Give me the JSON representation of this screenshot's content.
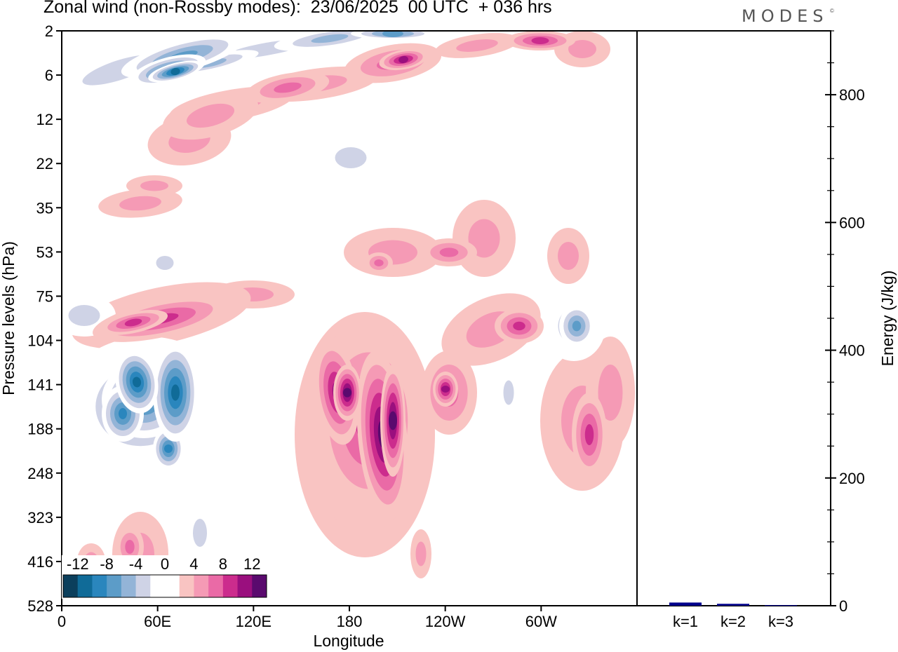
{
  "header": {
    "title": "Zonal wind (non-Rossby modes):  23/06/2025  00 UTC  + 036 hrs",
    "logo_text": "MODES",
    "logo_mark": "©"
  },
  "chart_data": [
    {
      "type": "heatmap",
      "title": "Zonal wind (non-Rossby modes):  23/06/2025  00 UTC  + 036 hrs",
      "xlabel": "Longitude",
      "ylabel": "Pressure levels (hPa)",
      "x_ticks": [
        "0",
        "60E",
        "120E",
        "180",
        "120W",
        "60W"
      ],
      "x_tick_values": [
        0,
        60,
        120,
        180,
        240,
        300
      ],
      "xlim": [
        0,
        360
      ],
      "y_ticks": [
        "2",
        "6",
        "12",
        "22",
        "35",
        "53",
        "75",
        "104",
        "141",
        "188",
        "248",
        "323",
        "416",
        "528"
      ],
      "colorbar": {
        "labels": [
          "-12",
          "-8",
          "-4",
          "0",
          "4",
          "8",
          "12"
        ],
        "label_values": [
          -12,
          -8,
          -4,
          0,
          4,
          8,
          12
        ],
        "bounds": [
          -14,
          14
        ],
        "colors": [
          "#0b3f5c",
          "#106b98",
          "#2a86bd",
          "#5c9cc8",
          "#93b4d7",
          "#cfd3e6",
          "#ffffff",
          "#ffffff",
          "#f9c4c2",
          "#f59ab5",
          "#ea6aa6",
          "#cc2c8d",
          "#9a0f7e",
          "#5a0a6e"
        ]
      },
      "features": [
        {
          "name": "negative jet upper",
          "lon_range": [
            50,
            220
          ],
          "levels": [
            "2",
            "6"
          ],
          "value": -12
        },
        {
          "name": "positive band upper",
          "lon_range": [
            60,
            320
          ],
          "levels": [
            "6",
            "22"
          ],
          "value": 6
        },
        {
          "name": "negative core lower",
          "lon_range": [
            20,
            100
          ],
          "levels": [
            "104",
            "323"
          ],
          "value": -12
        },
        {
          "name": "positive core 180",
          "lon_range": [
            160,
            230
          ],
          "levels": [
            "104",
            "416"
          ],
          "value": 12
        },
        {
          "name": "positive band 104 hPa",
          "lon_range": [
            30,
            110
          ],
          "levels": [
            "75",
            "141"
          ],
          "value": 8
        },
        {
          "name": "negative patch 310E",
          "lon_range": [
            300,
            340
          ],
          "levels": [
            "75",
            "141"
          ],
          "value": -8
        }
      ]
    },
    {
      "type": "bar",
      "categories": [
        "k=1",
        "k=2",
        "k=3"
      ],
      "values": [
        5,
        3,
        1
      ],
      "ylabel": "Energy (J/kg)",
      "ylim": [
        0,
        900
      ],
      "y_ticks": [
        0,
        200,
        400,
        600,
        800
      ],
      "bar_color": "#00008b"
    }
  ]
}
